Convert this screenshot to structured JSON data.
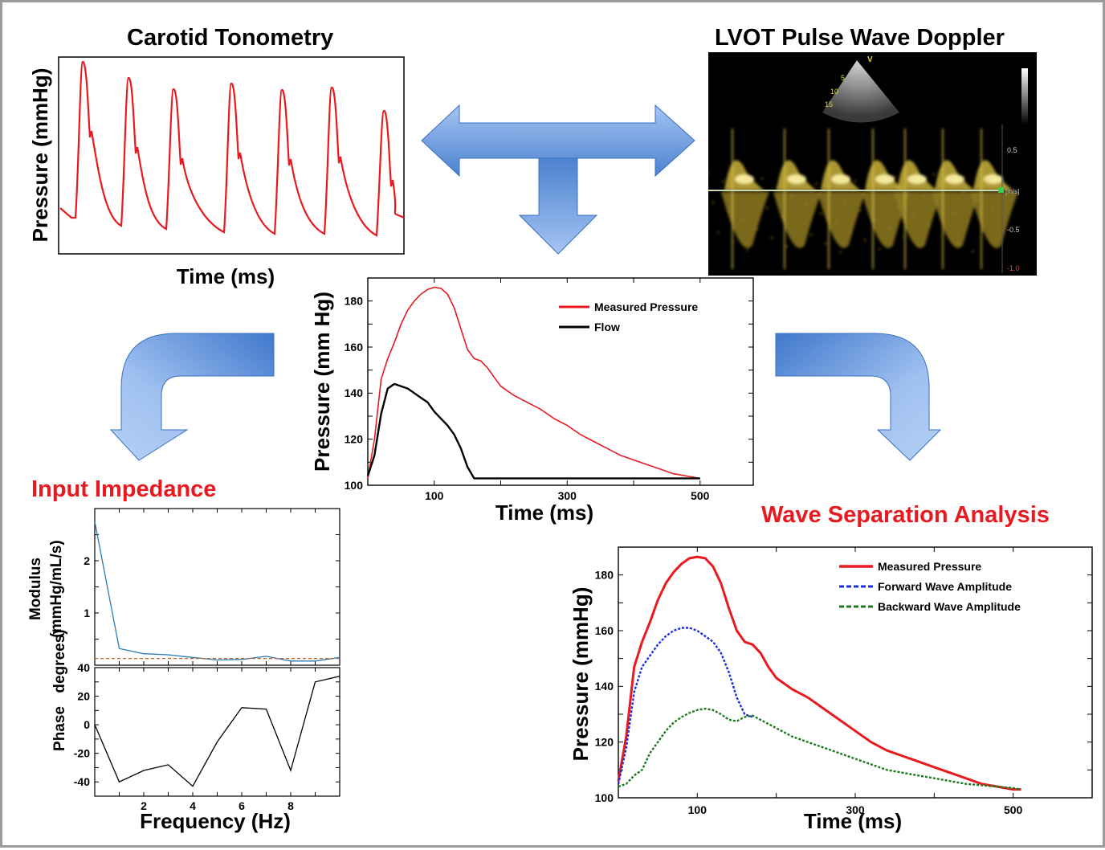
{
  "titles": {
    "carotid": "Carotid Tonometry",
    "lvot": "LVOT Pulse Wave Doppler",
    "input_impedance": "Input Impedance",
    "wave_sep": "Wave Separation Analysis"
  },
  "tonometry": {
    "xlabel": "Time (ms)",
    "ylabel": "Pressure (mmHg)",
    "color": "#e8191f"
  },
  "doppler": {
    "depth_labels": [
      "5",
      "10",
      "15"
    ],
    "scale_labels": [
      "0.5",
      "[m/s]",
      "-0.5",
      "-1.0"
    ],
    "marker": "V"
  },
  "colors": {
    "arrow_dark": "#4a7fcf",
    "arrow_light": "#a9c6f3",
    "measured": "#e8191f",
    "flow": "#000000",
    "forward": "#1a2ee0",
    "backward": "#1e7a1e",
    "modulus": "#2a7ab5",
    "mod_ref": "#c0622a"
  },
  "chart_data": [
    {
      "id": "center",
      "type": "line",
      "xlabel": "Time (ms)",
      "ylabel": "Pressure (mm Hg)",
      "xticks": [
        "100",
        "300",
        "500"
      ],
      "yticks": [
        "100",
        "120",
        "140",
        "160",
        "180"
      ],
      "xlim": [
        0,
        580
      ],
      "ylim": [
        100,
        190
      ],
      "legend_position": "top-right",
      "series": [
        {
          "name": "Measured Pressure",
          "color": "#e8191f",
          "x": [
            0,
            10,
            20,
            30,
            40,
            50,
            60,
            70,
            80,
            90,
            100,
            110,
            120,
            130,
            140,
            150,
            160,
            170,
            180,
            190,
            200,
            220,
            240,
            260,
            280,
            300,
            320,
            340,
            360,
            380,
            400,
            420,
            440,
            460,
            480,
            500
          ],
          "y": [
            103,
            120,
            146,
            155,
            162,
            170,
            176,
            180,
            183,
            185,
            186,
            185.5,
            183,
            177,
            168,
            159,
            155,
            154,
            151,
            147,
            143,
            139,
            136,
            133,
            129,
            126,
            122,
            119,
            116,
            113,
            111,
            109,
            107,
            105,
            104,
            103
          ]
        },
        {
          "name": "Flow",
          "color": "#000000",
          "x": [
            0,
            10,
            20,
            30,
            40,
            50,
            60,
            70,
            80,
            90,
            100,
            110,
            120,
            130,
            140,
            150,
            160,
            170,
            200,
            300,
            400,
            500
          ],
          "y": [
            104,
            113,
            131,
            142,
            144,
            143,
            142,
            140,
            138,
            136,
            132,
            129,
            126,
            122,
            116,
            108,
            103,
            103,
            103,
            103,
            103,
            103
          ]
        }
      ]
    },
    {
      "id": "wsa",
      "type": "line",
      "xlabel": "Time (ms)",
      "ylabel": "Pressure (mmHg)",
      "xticks": [
        "100",
        "300",
        "500"
      ],
      "yticks": [
        "100",
        "120",
        "140",
        "160",
        "180"
      ],
      "xlim": [
        0,
        600
      ],
      "ylim": [
        100,
        190
      ],
      "legend_position": "top-right",
      "series": [
        {
          "name": "Measured Pressure",
          "color": "#e8191f",
          "x": [
            0,
            10,
            20,
            30,
            40,
            50,
            60,
            70,
            80,
            90,
            100,
            110,
            120,
            130,
            140,
            150,
            160,
            170,
            180,
            190,
            200,
            220,
            240,
            260,
            280,
            300,
            320,
            340,
            360,
            380,
            400,
            420,
            440,
            460,
            480,
            500,
            510
          ],
          "y": [
            106,
            122,
            147,
            156,
            163,
            171,
            177,
            181,
            184,
            186,
            186.5,
            186,
            183,
            177,
            168,
            160,
            156,
            155,
            152,
            147,
            143,
            139,
            136,
            132,
            128,
            124,
            120,
            117,
            115,
            113,
            111,
            109,
            107,
            105,
            104,
            103,
            103
          ]
        },
        {
          "name": "Forward Wave Amplitude",
          "color": "#1a2ee0",
          "x": [
            0,
            10,
            20,
            30,
            40,
            50,
            60,
            70,
            80,
            90,
            100,
            110,
            120,
            130,
            140,
            150,
            160,
            170
          ],
          "y": [
            105,
            118,
            138,
            147,
            151,
            155,
            158,
            160,
            161,
            161,
            160,
            158,
            156,
            152,
            145,
            136,
            130,
            129
          ]
        },
        {
          "name": "Backward Wave Amplitude",
          "color": "#1e7a1e",
          "x": [
            0,
            10,
            20,
            30,
            40,
            50,
            60,
            70,
            80,
            90,
            100,
            110,
            120,
            130,
            140,
            150,
            160,
            170,
            180,
            200,
            220,
            240,
            260,
            280,
            300,
            320,
            340,
            360,
            380,
            400,
            420,
            440,
            460,
            480,
            500,
            510
          ],
          "y": [
            104,
            105,
            108,
            110,
            116,
            120,
            124,
            127,
            129,
            130.5,
            131.5,
            132,
            131.5,
            130,
            128,
            127.5,
            129,
            129.5,
            128,
            125,
            122,
            120,
            118,
            116,
            114,
            112,
            110,
            109,
            108,
            107,
            106,
            105,
            104.5,
            104,
            103.5,
            103
          ]
        }
      ]
    },
    {
      "id": "modulus",
      "type": "line",
      "ylabel_line1": "Modulus",
      "ylabel_line2": "(mmHg/mL/s)",
      "yticks": [
        "1",
        "2"
      ],
      "xlim": [
        0,
        10
      ],
      "ylim": [
        0,
        3
      ],
      "series": [
        {
          "name": "",
          "color": "#2a7ab5",
          "x": [
            0,
            1,
            2,
            3,
            4,
            5,
            6,
            7,
            8,
            9,
            10
          ],
          "y": [
            2.75,
            0.32,
            0.22,
            0.2,
            0.15,
            0.1,
            0.11,
            0.17,
            0.08,
            0.08,
            0.15
          ]
        },
        {
          "name": "",
          "color": "#c0622a",
          "dashed": true,
          "x": [
            0,
            10
          ],
          "y": [
            0.13,
            0.13
          ]
        }
      ]
    },
    {
      "id": "phase",
      "type": "line",
      "ylabel_line1": "Phase",
      "ylabel_line2": "degrees)",
      "xlabel": "Frequency (Hz)",
      "xticks": [
        "2",
        "4",
        "6",
        "8"
      ],
      "yticks": [
        "40",
        "20",
        "0",
        "-20",
        "-40"
      ],
      "xlim": [
        0,
        10
      ],
      "ylim": [
        -50,
        40
      ],
      "series": [
        {
          "name": "",
          "color": "#000000",
          "x": [
            0,
            1,
            2,
            3,
            4,
            5,
            6,
            7,
            8,
            9,
            10
          ],
          "y": [
            0,
            -40,
            -32,
            -28,
            -43,
            -12,
            12,
            11,
            -32,
            30,
            34
          ]
        }
      ]
    }
  ]
}
